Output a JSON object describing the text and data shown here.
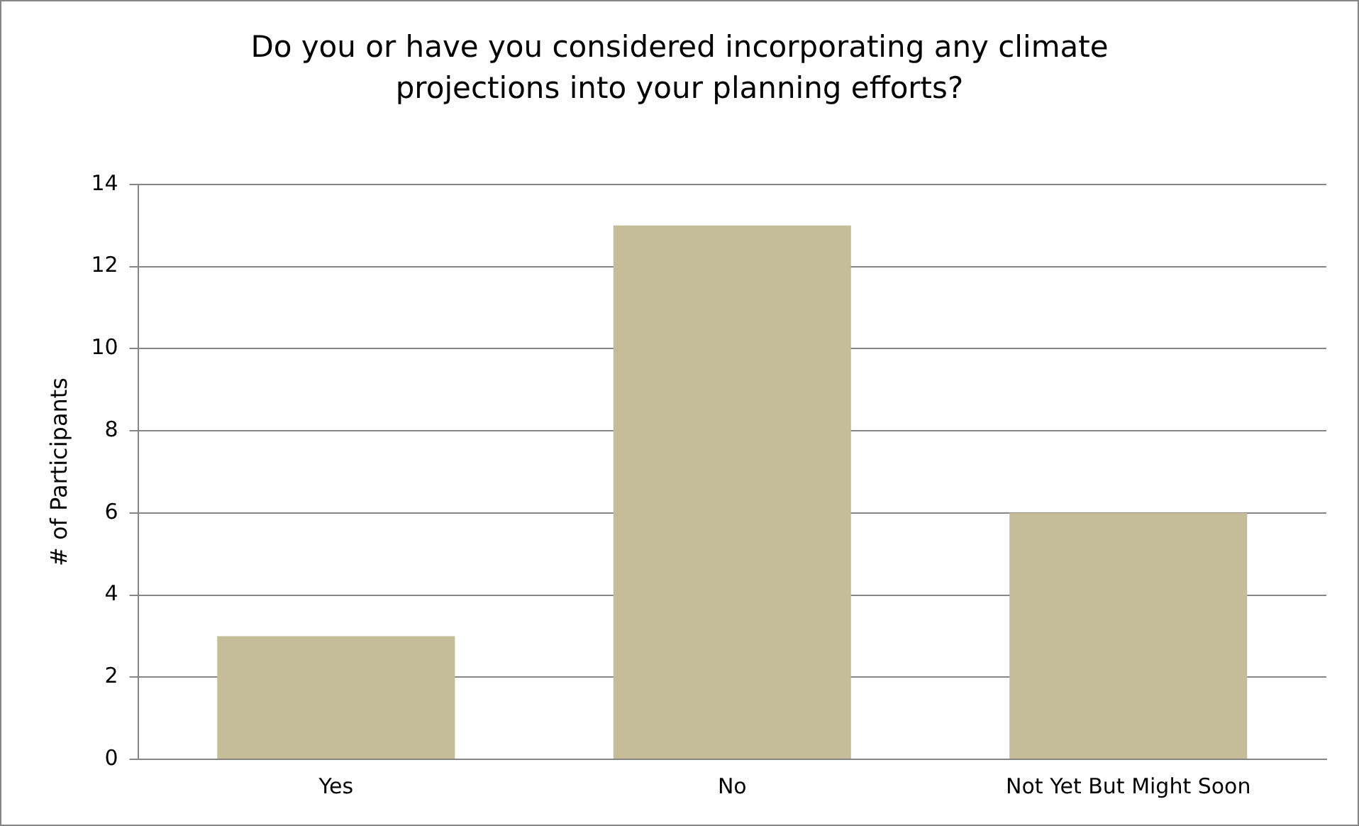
{
  "chart_data": {
    "type": "bar",
    "title": "Do you or have you considered incorporating any climate projections into your planning efforts?",
    "ylabel": "# of Participants",
    "categories": [
      "Yes",
      "No",
      "Not Yet But Might Soon"
    ],
    "values": [
      3,
      13,
      6
    ],
    "color": "#c4bd97",
    "ylim": [
      0,
      14
    ],
    "yticks": [
      0,
      2,
      4,
      6,
      8,
      10,
      12,
      14
    ],
    "grid": "y",
    "legend": false
  }
}
